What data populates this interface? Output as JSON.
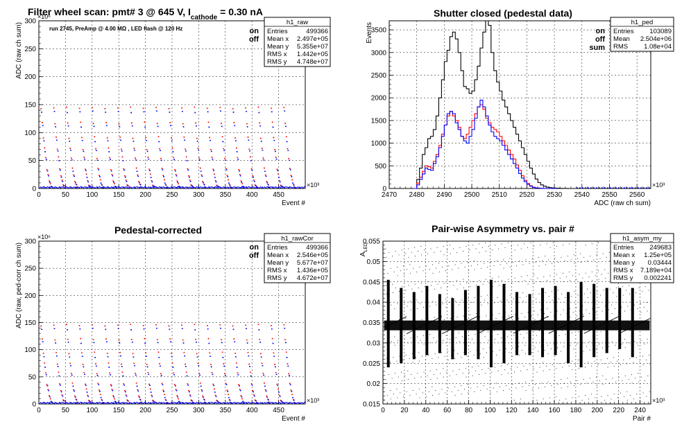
{
  "panels": [
    {
      "id": "raw",
      "title": {
        "main": "Filter wheel scan: pmt#   3 @   645 V, I",
        "sub": "cathode",
        "tail": "     = 0.30 nA"
      },
      "ylabel": "ADC (raw ch sum)",
      "xlabel": "Event #",
      "note": "run 2745, PreAmp @ 4.00 MΩ , LED flash @  120 Hz",
      "legend": [
        {
          "label": "on",
          "color": "#ff0000"
        },
        {
          "label": "off",
          "color": "#0000ff"
        }
      ],
      "stats": {
        "name": "h1_raw",
        "rows": [
          [
            "Entries",
            "499366"
          ],
          [
            "Mean x",
            "2.497e+05"
          ],
          [
            "Mean y",
            "5.355e+07"
          ],
          [
            "RMS x",
            "1.442e+05"
          ],
          [
            "RMS y",
            "4.748e+07"
          ]
        ]
      }
    },
    {
      "id": "ped",
      "title": {
        "main": "Shutter closed (pedestal data)"
      },
      "ylabel": "Events",
      "xlabel": "ADC (raw ch sum)",
      "legend": [
        {
          "label": "on",
          "color": "#ff0000"
        },
        {
          "label": "off",
          "color": "#0000ff"
        },
        {
          "label": "sum",
          "color": "#000000"
        }
      ],
      "stats": {
        "name": "h1_ped",
        "rows": [
          [
            "Entries",
            "103089"
          ],
          [
            "Mean",
            "2.504e+06"
          ],
          [
            "RMS",
            "1.08e+04"
          ]
        ]
      }
    },
    {
      "id": "cor",
      "title": {
        "main": "Pedestal-corrected"
      },
      "ylabel": "ADC (raw, ped-corr ch sum)",
      "xlabel": "Event #",
      "legend": [
        {
          "label": "on",
          "color": "#ff0000"
        },
        {
          "label": "off",
          "color": "#0000ff"
        }
      ],
      "stats": {
        "name": "h1_rawCor",
        "rows": [
          [
            "Entries",
            "499366"
          ],
          [
            "Mean x",
            "2.546e+05"
          ],
          [
            "Mean y",
            "5.677e+07"
          ],
          [
            "RMS x",
            "1.436e+05"
          ],
          [
            "RMS y",
            "4.672e+07"
          ]
        ]
      }
    },
    {
      "id": "asym",
      "title": {
        "main": "Pair-wise Asymmetry vs. pair #"
      },
      "ylabel": "A",
      "ylabel_sub": "LED",
      "xlabel": "Pair #",
      "stats": {
        "name": "h1_asym_my",
        "rows": [
          [
            "Entries",
            "249683"
          ],
          [
            "Mean x",
            "1.25e+05"
          ],
          [
            "Mean y",
            "0.03444"
          ],
          [
            "RMS x",
            "7.189e+04"
          ],
          [
            "RMS y",
            "0.002241"
          ]
        ]
      }
    }
  ],
  "chart_data": [
    {
      "type": "scatter",
      "title": "Filter wheel scan: pmt#   3 @   645 V, I cathode = 0.30 nA",
      "xlabel": "Event #",
      "ylabel": "ADC (raw ch sum)",
      "x_multiplier": "×10³",
      "y_multiplier": "×10⁶",
      "xlim": [
        0,
        500
      ],
      "ylim": [
        0,
        300
      ],
      "xticks": [
        0,
        50,
        100,
        150,
        200,
        250,
        300,
        350,
        400,
        450
      ],
      "yticks": [
        0,
        50,
        100,
        150,
        200,
        250,
        300
      ],
      "grid": true,
      "period": 24,
      "cycles": 20,
      "series": [
        {
          "name": "on",
          "color": "#ff0000",
          "levels": [
            145,
            118,
            92,
            72,
            56,
            36,
            25,
            15,
            8,
            4
          ]
        },
        {
          "name": "off",
          "color": "#0000ff",
          "levels": [
            138,
            112,
            86,
            68,
            52,
            33,
            22,
            12,
            6,
            3
          ]
        }
      ]
    },
    {
      "type": "line",
      "title": "Shutter closed (pedestal data)",
      "xlabel": "ADC (raw ch sum)",
      "ylabel": "Events",
      "x_multiplier": "×10³",
      "xlim": [
        2470,
        2565
      ],
      "ylim": [
        0,
        3700
      ],
      "xticks": [
        2470,
        2480,
        2490,
        2500,
        2510,
        2520,
        2530,
        2540,
        2550,
        2560
      ],
      "yticks": [
        0,
        500,
        1000,
        1500,
        2000,
        2500,
        3000,
        3500
      ],
      "grid": true,
      "series": [
        {
          "name": "sum",
          "color": "#000000",
          "x": [
            2479,
            2480,
            2481,
            2482,
            2483,
            2484,
            2485,
            2486,
            2487,
            2488,
            2489,
            2490,
            2491,
            2492,
            2493,
            2494,
            2495,
            2496,
            2497,
            2498,
            2499,
            2500,
            2501,
            2502,
            2503,
            2504,
            2505,
            2506,
            2507,
            2508,
            2509,
            2510,
            2511,
            2512,
            2513,
            2514,
            2515,
            2516,
            2517,
            2518,
            2519,
            2520,
            2521,
            2522,
            2523,
            2524,
            2525,
            2526,
            2527,
            2528,
            2529,
            2530,
            2531,
            2532,
            2533,
            2534,
            2535,
            2536,
            2537,
            2538
          ],
          "y": [
            0,
            200,
            450,
            750,
            900,
            1100,
            1150,
            1300,
            1600,
            2000,
            2400,
            2800,
            3050,
            3350,
            3450,
            3300,
            3000,
            2600,
            2250,
            2200,
            2100,
            2150,
            2400,
            2700,
            3100,
            3450,
            3700,
            3600,
            3000,
            2600,
            2350,
            2150,
            1950,
            1800,
            1650,
            1500,
            1350,
            1200,
            1050,
            900,
            750,
            600,
            450,
            320,
            210,
            130,
            80,
            50,
            30,
            20,
            12,
            8,
            5,
            3,
            2,
            1,
            0,
            0,
            0,
            0
          ]
        },
        {
          "name": "on",
          "color": "#ff0000",
          "x": [
            2479,
            2480,
            2481,
            2482,
            2483,
            2484,
            2485,
            2486,
            2487,
            2488,
            2489,
            2490,
            2491,
            2492,
            2493,
            2494,
            2495,
            2496,
            2497,
            2498,
            2499,
            2500,
            2501,
            2502,
            2503,
            2504,
            2505,
            2506,
            2507,
            2508,
            2509,
            2510,
            2511,
            2512,
            2513,
            2514,
            2515,
            2516,
            2517,
            2518,
            2519,
            2520,
            2521,
            2522,
            2523,
            2524,
            2525,
            2526,
            2527,
            2528,
            2529,
            2530
          ],
          "y": [
            0,
            120,
            250,
            380,
            500,
            480,
            450,
            600,
            750,
            950,
            1200,
            1400,
            1600,
            1700,
            1600,
            1500,
            1350,
            1150,
            1100,
            1200,
            1350,
            1500,
            1650,
            1800,
            1850,
            1750,
            1550,
            1450,
            1350,
            1300,
            1250,
            1150,
            1050,
            950,
            850,
            750,
            650,
            520,
            400,
            280,
            180,
            110,
            60,
            30,
            15,
            8,
            4,
            2,
            1,
            0,
            0,
            0
          ]
        },
        {
          "name": "off",
          "color": "#0000ff",
          "x": [
            2479,
            2480,
            2481,
            2482,
            2483,
            2484,
            2485,
            2486,
            2487,
            2488,
            2489,
            2490,
            2491,
            2492,
            2493,
            2494,
            2495,
            2496,
            2497,
            2498,
            2499,
            2500,
            2501,
            2502,
            2503,
            2504,
            2505,
            2506,
            2507,
            2508,
            2509,
            2510,
            2511,
            2512,
            2513,
            2514,
            2515,
            2516,
            2517,
            2518,
            2519,
            2520,
            2521,
            2522,
            2523,
            2524,
            2525,
            2526,
            2527,
            2528,
            2529,
            2530
          ],
          "y": [
            0,
            80,
            200,
            320,
            450,
            420,
            400,
            550,
            700,
            900,
            1150,
            1400,
            1650,
            1700,
            1650,
            1450,
            1300,
            1150,
            1050,
            1000,
            1150,
            1300,
            1550,
            1800,
            1950,
            1800,
            1600,
            1400,
            1250,
            1150,
            1100,
            1050,
            950,
            850,
            750,
            650,
            550,
            450,
            330,
            230,
            150,
            90,
            50,
            25,
            12,
            6,
            3,
            1,
            0,
            0,
            0,
            0
          ]
        }
      ]
    },
    {
      "type": "scatter",
      "title": "Pedestal-corrected",
      "xlabel": "Event #",
      "ylabel": "ADC (raw, ped-corr ch sum)",
      "x_multiplier": "×10³",
      "y_multiplier": "×10⁶",
      "xlim": [
        0,
        500
      ],
      "ylim": [
        0,
        300
      ],
      "xticks": [
        0,
        50,
        100,
        150,
        200,
        250,
        300,
        350,
        400,
        450
      ],
      "yticks": [
        0,
        50,
        100,
        150,
        200,
        250,
        300
      ],
      "grid": true,
      "period": 24,
      "cycles": 20,
      "series": [
        {
          "name": "on",
          "color": "#ff0000",
          "levels": [
            146,
            120,
            95,
            75,
            58,
            38,
            27,
            17,
            9,
            5
          ]
        },
        {
          "name": "off",
          "color": "#0000ff",
          "levels": [
            139,
            114,
            88,
            70,
            54,
            35,
            24,
            14,
            7,
            3
          ]
        }
      ]
    },
    {
      "type": "scatter",
      "title": "Pair-wise Asymmetry vs. pair #",
      "xlabel": "Pair #",
      "ylabel": "A LED",
      "x_multiplier": "×10³",
      "xlim": [
        0,
        250
      ],
      "ylim": [
        0.015,
        0.055
      ],
      "xticks": [
        0,
        20,
        40,
        60,
        80,
        100,
        120,
        140,
        160,
        180,
        200,
        220,
        240
      ],
      "yticks": [
        0.015,
        0.02,
        0.025,
        0.03,
        0.035,
        0.04,
        0.045,
        0.05,
        0.055
      ],
      "grid": true,
      "band": {
        "center": 0.0343,
        "halfwidth": 0.0012
      },
      "spikes_x": [
        5,
        17,
        29,
        41,
        53,
        65,
        77,
        89,
        101,
        113,
        125,
        137,
        149,
        161,
        173,
        185,
        197,
        209,
        221,
        233
      ],
      "spikes_upper": [
        0.0455,
        0.0435,
        0.0425,
        0.044,
        0.042,
        0.041,
        0.043,
        0.044,
        0.0455,
        0.0445,
        0.0425,
        0.042,
        0.0435,
        0.044,
        0.0425,
        0.045,
        0.0445,
        0.0435,
        0.0435,
        0.0435
      ],
      "spikes_lower": [
        0.024,
        0.025,
        0.026,
        0.027,
        0.0275,
        0.026,
        0.027,
        0.026,
        0.024,
        0.025,
        0.027,
        0.027,
        0.0265,
        0.027,
        0.025,
        0.024,
        0.0265,
        0.0275,
        0.0285,
        0.0265
      ],
      "series": [
        {
          "name": "",
          "color": "#000000"
        }
      ]
    }
  ]
}
